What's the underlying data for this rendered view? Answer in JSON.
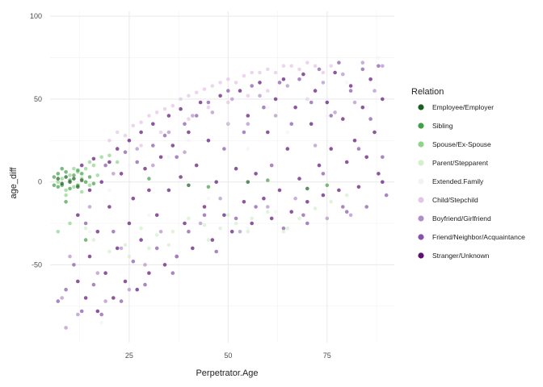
{
  "chart_data": {
    "type": "scatter",
    "xlabel": "Perpetrator.Age",
    "ylabel": "age_diff",
    "xlim": [
      5,
      92
    ],
    "ylim": [
      -97,
      103
    ],
    "x_ticks": [
      25,
      50,
      75
    ],
    "y_ticks": [
      -50,
      0,
      50,
      100
    ],
    "grid": true,
    "legend": {
      "title": "Relation",
      "position": "right",
      "entries": [
        {
          "name": "Employee/Employer",
          "color": "#1b5e20"
        },
        {
          "name": "Sibling",
          "color": "#43a047"
        },
        {
          "name": "Spouse/Ex-Spouse",
          "color": "#8fd48a"
        },
        {
          "name": "Parent/Stepparent",
          "color": "#d3efcc"
        },
        {
          "name": "Extended.Family",
          "color": "#f4f2f6"
        },
        {
          "name": "Child/Stepchild",
          "color": "#e3c5e6"
        },
        {
          "name": "Boyfriend/Girlfriend",
          "color": "#b08fc9"
        },
        {
          "name": "Friend/Neighbor/Acquaintance",
          "color": "#8653a8"
        },
        {
          "name": "Stranger/Unknown",
          "color": "#5d0f74"
        }
      ]
    },
    "series": [
      {
        "name": "Stranger/Unknown",
        "color": "#5d0f74",
        "points": [
          [
            12,
            -60
          ],
          [
            12,
            -20
          ],
          [
            13,
            10
          ],
          [
            14,
            -70
          ],
          [
            15,
            -45
          ],
          [
            15,
            -5
          ],
          [
            16,
            14
          ],
          [
            17,
            -78
          ],
          [
            17,
            -30
          ],
          [
            18,
            0
          ],
          [
            19,
            -55
          ],
          [
            20,
            12
          ],
          [
            20,
            -15
          ],
          [
            21,
            -70
          ],
          [
            22,
            -40
          ],
          [
            22,
            20
          ],
          [
            23,
            5
          ],
          [
            24,
            -60
          ],
          [
            25,
            -25
          ],
          [
            25,
            25
          ],
          [
            26,
            -10
          ],
          [
            27,
            -65
          ],
          [
            28,
            30
          ],
          [
            28,
            -35
          ],
          [
            29,
            8
          ],
          [
            30,
            -55
          ],
          [
            30,
            -5
          ],
          [
            31,
            35
          ],
          [
            32,
            -20
          ],
          [
            33,
            15
          ],
          [
            34,
            -50
          ],
          [
            35,
            40
          ],
          [
            35,
            -5
          ],
          [
            36,
            22
          ],
          [
            37,
            -45
          ],
          [
            38,
            3
          ],
          [
            38,
            44
          ],
          [
            39,
            -25
          ],
          [
            40,
            30
          ],
          [
            41,
            -40
          ],
          [
            42,
            10
          ],
          [
            43,
            48
          ],
          [
            44,
            -15
          ],
          [
            45,
            25
          ],
          [
            46,
            -35
          ],
          [
            47,
            0
          ],
          [
            48,
            52
          ],
          [
            49,
            -20
          ],
          [
            50,
            35
          ],
          [
            51,
            -30
          ],
          [
            52,
            8
          ],
          [
            53,
            55
          ],
          [
            54,
            -12
          ],
          [
            55,
            40
          ],
          [
            56,
            -25
          ],
          [
            57,
            5
          ],
          [
            58,
            60
          ],
          [
            59,
            -10
          ],
          [
            60,
            30
          ],
          [
            61,
            -22
          ],
          [
            62,
            50
          ],
          [
            63,
            -5
          ],
          [
            64,
            62
          ],
          [
            65,
            20
          ],
          [
            66,
            -18
          ],
          [
            67,
            45
          ],
          [
            68,
            2
          ],
          [
            69,
            65
          ],
          [
            70,
            -12
          ],
          [
            71,
            35
          ],
          [
            72,
            55
          ],
          [
            73,
            10
          ],
          [
            74,
            -8
          ],
          [
            75,
            48
          ],
          [
            76,
            20
          ],
          [
            77,
            66
          ],
          [
            78,
            -5
          ],
          [
            79,
            38
          ],
          [
            80,
            12
          ],
          [
            81,
            58
          ],
          [
            82,
            25
          ],
          [
            83,
            -3
          ],
          [
            84,
            45
          ],
          [
            85,
            15
          ],
          [
            86,
            62
          ],
          [
            87,
            30
          ],
          [
            88,
            5
          ],
          [
            89,
            50
          ],
          [
            89,
            0
          ]
        ]
      },
      {
        "name": "Friend/Neighbor/Acquaintance",
        "color": "#8653a8",
        "points": [
          [
            7,
            -72
          ],
          [
            9,
            -65
          ],
          [
            11,
            -50
          ],
          [
            13,
            -78
          ],
          [
            14,
            -25
          ],
          [
            16,
            -62
          ],
          [
            18,
            -80
          ],
          [
            19,
            10
          ],
          [
            21,
            -30
          ],
          [
            23,
            -72
          ],
          [
            24,
            18
          ],
          [
            26,
            -48
          ],
          [
            27,
            12
          ],
          [
            29,
            -62
          ],
          [
            31,
            22
          ],
          [
            32,
            -40
          ],
          [
            34,
            28
          ],
          [
            36,
            -55
          ],
          [
            37,
            15
          ],
          [
            39,
            35
          ],
          [
            40,
            -30
          ],
          [
            42,
            40
          ],
          [
            44,
            -20
          ],
          [
            45,
            48
          ],
          [
            47,
            -42
          ],
          [
            49,
            20
          ],
          [
            50,
            55
          ],
          [
            52,
            -22
          ],
          [
            54,
            30
          ],
          [
            56,
            58
          ],
          [
            57,
            -15
          ],
          [
            59,
            45
          ],
          [
            61,
            10
          ],
          [
            63,
            60
          ],
          [
            64,
            -28
          ],
          [
            66,
            35
          ],
          [
            68,
            62
          ],
          [
            69,
            -20
          ],
          [
            71,
            48
          ],
          [
            73,
            68
          ],
          [
            74,
            5
          ],
          [
            76,
            40
          ],
          [
            78,
            72
          ],
          [
            79,
            -15
          ],
          [
            81,
            55
          ],
          [
            83,
            20
          ],
          [
            84,
            68
          ],
          [
            86,
            38
          ],
          [
            88,
            70
          ],
          [
            89,
            15
          ],
          [
            90,
            -8
          ],
          [
            85,
            -15
          ],
          [
            80,
            -18
          ],
          [
            70,
            -25
          ]
        ]
      },
      {
        "name": "Boyfriend/Girlfriend",
        "color": "#b08fc9",
        "points": [
          [
            8,
            -70
          ],
          [
            10,
            -45
          ],
          [
            12,
            -80
          ],
          [
            15,
            -15
          ],
          [
            17,
            -55
          ],
          [
            19,
            -72
          ],
          [
            21,
            5
          ],
          [
            23,
            -40
          ],
          [
            25,
            -65
          ],
          [
            27,
            20
          ],
          [
            29,
            -50
          ],
          [
            31,
            10
          ],
          [
            33,
            -30
          ],
          [
            35,
            30
          ],
          [
            37,
            -45
          ],
          [
            39,
            18
          ],
          [
            41,
            40
          ],
          [
            43,
            -25
          ],
          [
            46,
            42
          ],
          [
            48,
            -10
          ],
          [
            51,
            50
          ],
          [
            53,
            -30
          ],
          [
            55,
            35
          ],
          [
            58,
            52
          ],
          [
            60,
            -15
          ],
          [
            62,
            40
          ],
          [
            65,
            58
          ],
          [
            67,
            -10
          ],
          [
            70,
            50
          ],
          [
            72,
            22
          ],
          [
            74,
            60
          ],
          [
            77,
            42
          ],
          [
            79,
            65
          ],
          [
            82,
            48
          ],
          [
            84,
            72
          ],
          [
            87,
            55
          ],
          [
            89,
            70
          ],
          [
            81,
            -20
          ],
          [
            75,
            -22
          ],
          [
            9,
            -88
          ]
        ]
      },
      {
        "name": "Child/Stepchild",
        "color": "#e3c5e6",
        "points": [
          [
            20,
            25
          ],
          [
            22,
            30
          ],
          [
            24,
            28
          ],
          [
            26,
            34
          ],
          [
            28,
            36
          ],
          [
            30,
            40
          ],
          [
            32,
            42
          ],
          [
            34,
            44
          ],
          [
            36,
            46
          ],
          [
            38,
            50
          ],
          [
            40,
            52
          ],
          [
            42,
            54
          ],
          [
            44,
            56
          ],
          [
            46,
            58
          ],
          [
            48,
            60
          ],
          [
            50,
            62
          ],
          [
            52,
            60
          ],
          [
            54,
            64
          ],
          [
            56,
            66
          ],
          [
            58,
            66
          ],
          [
            60,
            68
          ],
          [
            62,
            66
          ],
          [
            64,
            70
          ],
          [
            66,
            70
          ],
          [
            68,
            68
          ],
          [
            70,
            72
          ],
          [
            72,
            70
          ],
          [
            74,
            66
          ],
          [
            76,
            70
          ],
          [
            40,
            38
          ],
          [
            45,
            45
          ],
          [
            50,
            48
          ],
          [
            55,
            52
          ],
          [
            60,
            55
          ],
          [
            33,
            30
          ],
          [
            28,
            22
          ]
        ]
      },
      {
        "name": "Extended.Family",
        "color": "#f4f2f6",
        "points": [
          [
            15,
            -30
          ],
          [
            20,
            -5
          ],
          [
            25,
            10
          ],
          [
            30,
            -20
          ],
          [
            35,
            15
          ],
          [
            40,
            25
          ],
          [
            45,
            -10
          ],
          [
            50,
            35
          ],
          [
            55,
            20
          ],
          [
            60,
            45
          ],
          [
            65,
            30
          ],
          [
            70,
            50
          ],
          [
            75,
            40
          ],
          [
            80,
            60
          ],
          [
            85,
            45
          ],
          [
            88,
            75
          ],
          [
            18,
            -85
          ],
          [
            55,
            -28
          ],
          [
            62,
            -18
          ]
        ]
      },
      {
        "name": "Parent/Stepparent",
        "color": "#d3efcc",
        "points": [
          [
            16,
            -35
          ],
          [
            20,
            -42
          ],
          [
            24,
            -38
          ],
          [
            28,
            -28
          ],
          [
            32,
            -32
          ],
          [
            36,
            -30
          ],
          [
            40,
            -22
          ],
          [
            44,
            -26
          ],
          [
            48,
            -28
          ],
          [
            52,
            -25
          ],
          [
            56,
            -22
          ],
          [
            60,
            -18
          ],
          [
            64,
            -30
          ],
          [
            68,
            -22
          ],
          [
            72,
            -16
          ],
          [
            76,
            -12
          ],
          [
            80,
            -8
          ],
          [
            25,
            -45
          ],
          [
            35,
            -38
          ],
          [
            45,
            -35
          ],
          [
            55,
            -30
          ],
          [
            65,
            -28
          ],
          [
            14,
            -28
          ],
          [
            30,
            -40
          ],
          [
            50,
            -20
          ]
        ]
      },
      {
        "name": "Spouse/Ex-Spouse",
        "color": "#8fd48a",
        "points": [
          [
            7,
            0
          ],
          [
            8,
            2
          ],
          [
            9,
            -5
          ],
          [
            10,
            4
          ],
          [
            11,
            -3
          ],
          [
            12,
            6
          ],
          [
            13,
            2
          ],
          [
            14,
            8
          ],
          [
            15,
            -2
          ],
          [
            16,
            10
          ],
          [
            17,
            4
          ],
          [
            9,
            -8
          ],
          [
            11,
            8
          ],
          [
            13,
            -6
          ],
          [
            15,
            12
          ],
          [
            18,
            15
          ],
          [
            20,
            16
          ],
          [
            22,
            12
          ],
          [
            7,
            -30
          ],
          [
            10,
            -25
          ]
        ]
      },
      {
        "name": "Sibling",
        "color": "#43a047",
        "points": [
          [
            6,
            3
          ],
          [
            7,
            5
          ],
          [
            8,
            -2
          ],
          [
            9,
            6
          ],
          [
            10,
            1
          ],
          [
            11,
            4
          ],
          [
            12,
            -2
          ],
          [
            13,
            5
          ],
          [
            14,
            0
          ],
          [
            15,
            3
          ],
          [
            16,
            -1
          ],
          [
            8,
            8
          ],
          [
            10,
            -4
          ],
          [
            12,
            7
          ],
          [
            7,
            -3
          ],
          [
            9,
            -12
          ],
          [
            6,
            -2
          ],
          [
            30,
            2
          ],
          [
            45,
            -3
          ],
          [
            60,
            1
          ],
          [
            75,
            -2
          ],
          [
            14,
            -35
          ]
        ]
      },
      {
        "name": "Employee/Employer",
        "color": "#1b5e20",
        "points": [
          [
            7,
            2
          ],
          [
            8,
            -1
          ],
          [
            9,
            3
          ],
          [
            10,
            0
          ],
          [
            11,
            2
          ],
          [
            12,
            -3
          ],
          [
            13,
            1
          ],
          [
            40,
            -2
          ],
          [
            55,
            0
          ],
          [
            70,
            -4
          ]
        ]
      }
    ]
  }
}
